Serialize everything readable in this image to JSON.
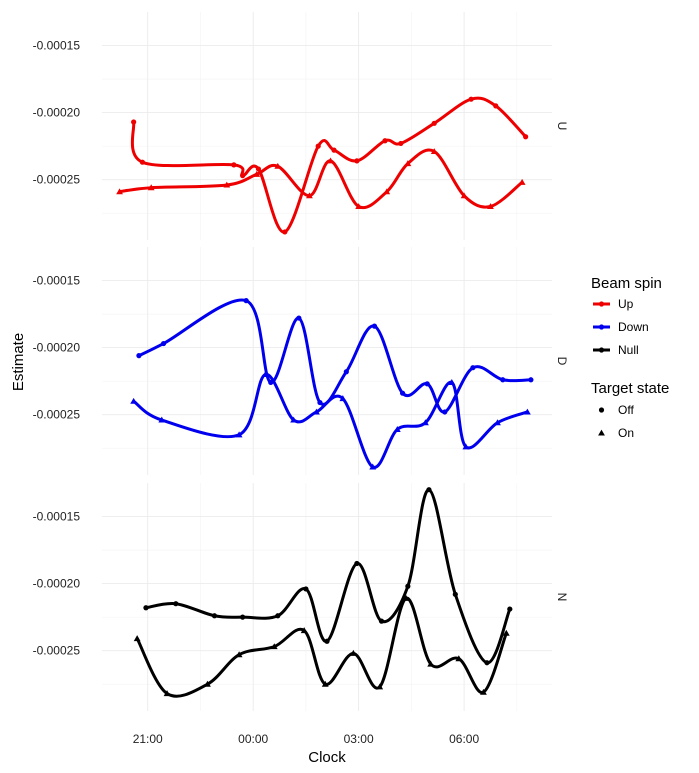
{
  "chart_data": {
    "type": "line",
    "xlabel": "Clock",
    "ylabel": "Estimate",
    "x_ticks": [
      {
        "label": "21:00",
        "hour": 21
      },
      {
        "label": "00:00",
        "hour": 24
      },
      {
        "label": "03:00",
        "hour": 27
      },
      {
        "label": "06:00",
        "hour": 30
      }
    ],
    "y_ticks": [
      "-0.00015",
      "-0.00020",
      "-0.00025"
    ],
    "y_tick_values": [
      -0.00015,
      -0.0002,
      -0.00025
    ],
    "ylim": [
      -0.000295,
      -0.000125
    ],
    "xlim": [
      19.7,
      32.5
    ],
    "grid": true,
    "legend": {
      "placement": "right",
      "color_title": "Beam spin",
      "color_entries": [
        "Up",
        "Down",
        "Null"
      ],
      "shape_title": "Target state",
      "shape_entries": [
        "Off",
        "On"
      ]
    },
    "colors": {
      "Up": "#ee0000",
      "Down": "#0000ee",
      "Null": "#000000"
    },
    "panels": [
      {
        "strip": "U",
        "color_key": "Up",
        "series": [
          {
            "beam": "Up",
            "target": "Off",
            "points": [
              [
                20.6,
                -0.000207
              ],
              [
                20.85,
                -0.000237
              ],
              [
                23.45,
                -0.000239
              ],
              [
                23.7,
                -0.000247
              ],
              [
                24.15,
                -0.000242
              ],
              [
                24.9,
                -0.000289
              ],
              [
                25.85,
                -0.000225
              ],
              [
                26.3,
                -0.000228
              ],
              [
                26.95,
                -0.000236
              ],
              [
                27.75,
                -0.000221
              ],
              [
                28.2,
                -0.000223
              ],
              [
                29.15,
                -0.000208
              ],
              [
                30.2,
                -0.00019
              ],
              [
                30.9,
                -0.000195
              ],
              [
                31.75,
                -0.000218
              ]
            ]
          },
          {
            "beam": "Up",
            "target": "On",
            "points": [
              [
                20.2,
                -0.000259
              ],
              [
                21.1,
                -0.000256
              ],
              [
                23.25,
                -0.000254
              ],
              [
                24.1,
                -0.000246
              ],
              [
                24.7,
                -0.00024
              ],
              [
                25.6,
                -0.000262
              ],
              [
                26.2,
                -0.000236
              ],
              [
                27.0,
                -0.00027
              ],
              [
                27.8,
                -0.000259
              ],
              [
                28.4,
                -0.000238
              ],
              [
                29.15,
                -0.000229
              ],
              [
                30.0,
                -0.000262
              ],
              [
                30.75,
                -0.00027
              ],
              [
                31.65,
                -0.000252
              ]
            ]
          }
        ]
      },
      {
        "strip": "D",
        "color_key": "Down",
        "series": [
          {
            "beam": "Down",
            "target": "Off",
            "points": [
              [
                20.75,
                -0.000206
              ],
              [
                21.45,
                -0.000197
              ],
              [
                23.8,
                -0.000165
              ],
              [
                24.5,
                -0.000226
              ],
              [
                25.3,
                -0.000178
              ],
              [
                25.9,
                -0.000241
              ],
              [
                26.65,
                -0.000218
              ],
              [
                27.45,
                -0.000184
              ],
              [
                28.25,
                -0.000234
              ],
              [
                28.95,
                -0.000227
              ],
              [
                29.45,
                -0.000248
              ],
              [
                30.25,
                -0.000215
              ],
              [
                31.1,
                -0.000224
              ],
              [
                31.9,
                -0.000224
              ]
            ]
          },
          {
            "beam": "Down",
            "target": "On",
            "points": [
              [
                20.6,
                -0.00024
              ],
              [
                21.4,
                -0.000254
              ],
              [
                23.6,
                -0.000265
              ],
              [
                24.35,
                -0.00022
              ],
              [
                25.15,
                -0.000254
              ],
              [
                25.8,
                -0.000248
              ],
              [
                26.55,
                -0.000238
              ],
              [
                27.4,
                -0.000289
              ],
              [
                28.1,
                -0.000261
              ],
              [
                28.9,
                -0.000256
              ],
              [
                29.65,
                -0.000226
              ],
              [
                30.05,
                -0.000274
              ],
              [
                30.95,
                -0.000256
              ],
              [
                31.8,
                -0.000248
              ]
            ]
          }
        ]
      },
      {
        "strip": "N",
        "color_key": "Null",
        "series": [
          {
            "beam": "Null",
            "target": "Off",
            "points": [
              [
                20.95,
                -0.000218
              ],
              [
                21.8,
                -0.000215
              ],
              [
                22.9,
                -0.000224
              ],
              [
                23.7,
                -0.000225
              ],
              [
                24.7,
                -0.000224
              ],
              [
                25.5,
                -0.000204
              ],
              [
                26.1,
                -0.000243
              ],
              [
                26.95,
                -0.000185
              ],
              [
                27.65,
                -0.000228
              ],
              [
                28.4,
                -0.000202
              ],
              [
                29.0,
                -0.00013
              ],
              [
                29.75,
                -0.000208
              ],
              [
                30.65,
                -0.000259
              ],
              [
                31.3,
                -0.000219
              ]
            ]
          },
          {
            "beam": "Null",
            "target": "On",
            "points": [
              [
                20.7,
                -0.000241
              ],
              [
                21.55,
                -0.000282
              ],
              [
                22.7,
                -0.000275
              ],
              [
                23.6,
                -0.000253
              ],
              [
                24.6,
                -0.000247
              ],
              [
                25.45,
                -0.000235
              ],
              [
                26.05,
                -0.000275
              ],
              [
                26.85,
                -0.000252
              ],
              [
                27.6,
                -0.000277
              ],
              [
                28.35,
                -0.000211
              ],
              [
                29.05,
                -0.00026
              ],
              [
                29.85,
                -0.000256
              ],
              [
                30.55,
                -0.000281
              ],
              [
                31.2,
                -0.000237
              ]
            ]
          }
        ]
      }
    ]
  }
}
